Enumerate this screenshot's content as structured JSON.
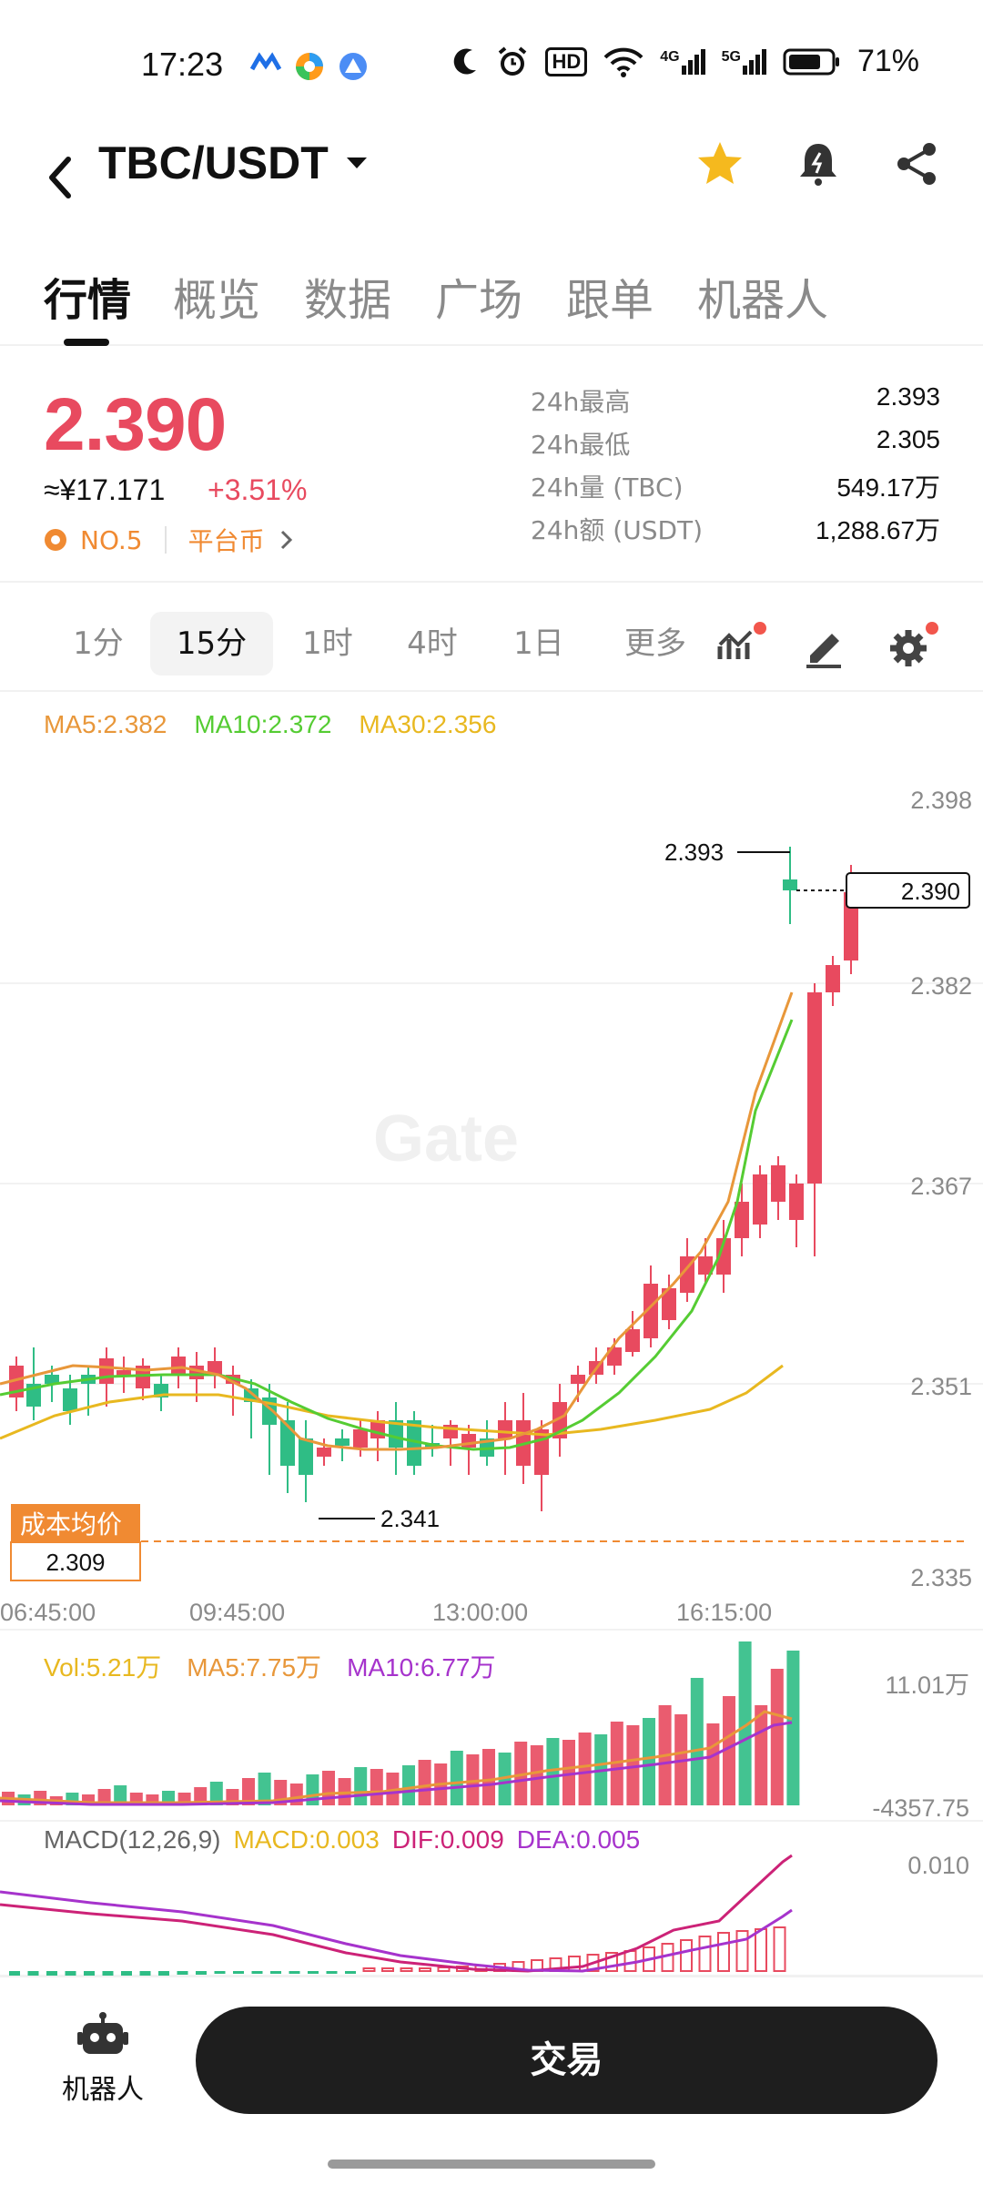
{
  "status": {
    "time": "17:23",
    "battery": "71%",
    "net1": "4G",
    "net2": "5G",
    "hd": "HD"
  },
  "header": {
    "pair": "TBC/USDT"
  },
  "tabs": [
    "行情",
    "概览",
    "数据",
    "广场",
    "跟单",
    "机器人"
  ],
  "price": {
    "last": "2.390",
    "cny": "≈¥17.171",
    "change": "+3.51%",
    "rank": "NO.5",
    "category": "平台币"
  },
  "stats": [
    {
      "k": "24h最高",
      "v": "2.393"
    },
    {
      "k": "24h最低",
      "v": "2.305"
    },
    {
      "k": "24h量 (TBC)",
      "v": "549.17万"
    },
    {
      "k": "24h额 (USDT)",
      "v": "1,288.67万"
    }
  ],
  "intervals": [
    "1分",
    "15分",
    "1时",
    "4时",
    "1日",
    "更多"
  ],
  "ma_legend": {
    "ma5": "MA5:2.382",
    "ma10": "MA10:2.372",
    "ma30": "MA30:2.356"
  },
  "chart_labels": {
    "y_ticks": [
      "2.398",
      "2.382",
      "2.367",
      "2.351",
      "2.335"
    ],
    "x_ticks": [
      "06:45:00",
      "09:45:00",
      "13:00:00",
      "16:15:00"
    ],
    "high_label": "2.393",
    "low_label": "2.341",
    "price_tag": "2.390",
    "cost_label": "成本均价",
    "cost_value": "2.309",
    "watermark": "Gate"
  },
  "vol_legend": {
    "vol": "Vol:5.21万",
    "ma5": "MA5:7.75万",
    "ma10": "MA10:6.77万",
    "top": "11.01万",
    "bottom": "-4357.75"
  },
  "macd_legend": {
    "label": "MACD(12,26,9)",
    "macd": "MACD:0.003",
    "dif": "DIF:0.009",
    "dea": "DEA:0.005",
    "top": "0.010"
  },
  "bottom": {
    "robot_label": "机器人",
    "trade_label": "交易"
  },
  "colors": {
    "up": "#e84a5f",
    "down": "#2fbd85",
    "ma5": "#e8973a",
    "ma10": "#55cc33",
    "ma30": "#e8b820",
    "vol_ma10": "#a633cc",
    "dif": "#cc2277"
  }
}
